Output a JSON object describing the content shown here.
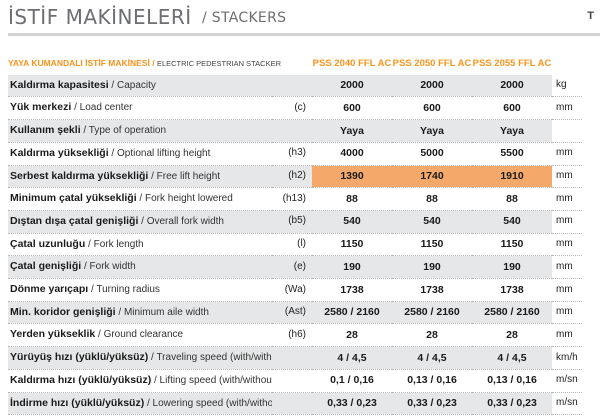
{
  "header": {
    "title_tr": "İSTİF MAKİNELERİ",
    "title_sep": "/",
    "title_en": "STACKERS",
    "corner_letter": "T"
  },
  "table": {
    "section_tr": "YAYA KUMANDALI İSTİF MAKİNESİ",
    "section_sep": " / ",
    "section_en": "ELECTRIC PEDESTRIAN STACKER",
    "models": [
      "PSS 2040 FFL AC",
      "PSS 2050 FFL AC",
      "PSS 2055 FFL AC"
    ],
    "rows": [
      {
        "tr": "Kaldırma kapasitesi",
        "en": "Capacity",
        "sym": "",
        "values": [
          "2000",
          "2000",
          "2000"
        ],
        "unit": "kg",
        "style": "shaded"
      },
      {
        "tr": "Yük merkezi",
        "en": "Load center",
        "sym": "(c)",
        "values": [
          "600",
          "600",
          "600"
        ],
        "unit": "mm",
        "style": "plain"
      },
      {
        "tr": "Kullanım şekli",
        "en": "Type of operation",
        "sym": "",
        "values": [
          "Yaya",
          "Yaya",
          "Yaya"
        ],
        "unit": "",
        "style": "shaded"
      },
      {
        "tr": "Kaldırma yüksekliği",
        "en": "Optional lifting height",
        "sym": "(h3)",
        "values": [
          "4000",
          "5000",
          "5500"
        ],
        "unit": "mm",
        "style": "plain"
      },
      {
        "tr": "Serbest kaldırma yüksekliği",
        "en": "Free lift height",
        "sym": "(h2)",
        "values": [
          "1390",
          "1740",
          "1910"
        ],
        "unit": "mm",
        "style": "highlight"
      },
      {
        "tr": "Minimum çatal yüksekliği",
        "en": "Fork height lowered",
        "sym": "(h13)",
        "values": [
          "88",
          "88",
          "88"
        ],
        "unit": "mm",
        "style": "plain"
      },
      {
        "tr": "Dıştan dışa çatal genişliği",
        "en": "Overall fork width",
        "sym": "(b5)",
        "values": [
          "540",
          "540",
          "540"
        ],
        "unit": "mm",
        "style": "shaded"
      },
      {
        "tr": "Çatal uzunluğu",
        "en": "Fork length",
        "sym": "(l)",
        "values": [
          "1150",
          "1150",
          "1150"
        ],
        "unit": "mm",
        "style": "plain"
      },
      {
        "tr": "Çatal genişliği",
        "en": "Fork width",
        "sym": "(e)",
        "values": [
          "190",
          "190",
          "190"
        ],
        "unit": "mm",
        "style": "shaded"
      },
      {
        "tr": "Dönme yarıçapı",
        "en": "Turning radius",
        "sym": "(Wa)",
        "values": [
          "1738",
          "1738",
          "1738"
        ],
        "unit": "mm",
        "style": "plain"
      },
      {
        "tr": "Min. koridor genişliği",
        "en": "Minimum aile width",
        "sym": "(Ast)",
        "values": [
          "2580 / 2160",
          "2580 / 2160",
          "2580 / 2160"
        ],
        "unit": "mm",
        "style": "shaded"
      },
      {
        "tr": "Yerden yükseklik",
        "en": "Ground clearance",
        "sym": "(h6)",
        "values": [
          "28",
          "28",
          "28"
        ],
        "unit": "mm",
        "style": "plain"
      },
      {
        "tr": "Yürüyüş hızı (yüklü/yüksüz)",
        "en": "Traveling speed (with/without load)",
        "sym": "",
        "values": [
          "4 / 4,5",
          "4 / 4,5",
          "4 / 4,5"
        ],
        "unit": "km/h",
        "style": "shaded"
      },
      {
        "tr": "Kaldırma hızı (yüklü/yüksüz)",
        "en": "Lifting speed (with/without load)",
        "sym": "",
        "values": [
          "0,1 / 0,16",
          "0,13 / 0,16",
          "0,13 / 0,16"
        ],
        "unit": "m/sn",
        "style": "plain"
      },
      {
        "tr": "İndirme hızı (yüklü/yüksüz)",
        "en": "Lowering speed (with/without load)",
        "sym": "",
        "values": [
          "0,33 / 0,23",
          "0,33 / 0,23",
          "0,33 / 0,23"
        ],
        "unit": "m/sn",
        "style": "shaded"
      }
    ]
  }
}
